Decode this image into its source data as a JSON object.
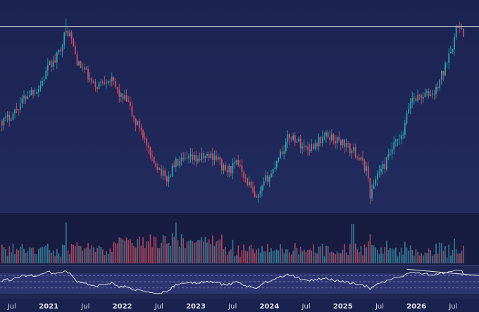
{
  "chart_data": {
    "type": "candlestick",
    "price_panel": {
      "price_min": 0,
      "price_max": 100,
      "horizontal_level": 93,
      "colors": {
        "up": "#2aa8b0",
        "down": "#e04a5f",
        "level_line": "#c5c9d6",
        "background": "#1c2452"
      },
      "waypoints": [
        [
          0,
          44
        ],
        [
          0.08,
          60
        ],
        [
          0.12,
          74
        ],
        [
          0.155,
          90
        ],
        [
          0.185,
          72
        ],
        [
          0.22,
          62
        ],
        [
          0.25,
          66
        ],
        [
          0.29,
          55
        ],
        [
          0.32,
          42
        ],
        [
          0.36,
          22
        ],
        [
          0.39,
          14
        ],
        [
          0.41,
          22
        ],
        [
          0.45,
          24
        ],
        [
          0.5,
          26
        ],
        [
          0.53,
          18
        ],
        [
          0.56,
          22
        ],
        [
          0.58,
          12
        ],
        [
          0.6,
          3
        ],
        [
          0.63,
          15
        ],
        [
          0.66,
          28
        ],
        [
          0.68,
          36
        ],
        [
          0.72,
          30
        ],
        [
          0.77,
          36
        ],
        [
          0.8,
          33
        ],
        [
          0.83,
          28
        ],
        [
          0.86,
          20
        ],
        [
          0.87,
          6
        ],
        [
          0.89,
          18
        ],
        [
          0.94,
          34
        ],
        [
          0.97,
          56
        ],
        [
          1.02,
          58
        ],
        [
          1.04,
          68
        ],
        [
          1.06,
          82
        ],
        [
          1.08,
          94
        ],
        [
          1.1,
          80
        ]
      ],
      "start_offset": 0.06,
      "x_span": 1.09
    },
    "volume_panel": {
      "colors": {
        "up": "#3b7f9a",
        "down": "#b24860",
        "background": "#171c40"
      }
    },
    "oscillator_panel": {
      "guide_levels": [
        70,
        50,
        30
      ],
      "colors": {
        "line": "#e9ecf4",
        "band": "#313c7a",
        "guide": "#8e95b8",
        "trendline": "#e9ecf4",
        "background": "#1f2752"
      }
    },
    "x_axis": {
      "ticks": [
        {
          "label": "Jul",
          "year": false
        },
        {
          "label": "2021",
          "year": true
        },
        {
          "label": "Jul",
          "year": false
        },
        {
          "label": "2022",
          "year": true
        },
        {
          "label": "Jul",
          "year": false
        },
        {
          "label": "2023",
          "year": true
        },
        {
          "label": "Jul",
          "year": false
        },
        {
          "label": "2024",
          "year": true
        },
        {
          "label": "Jul",
          "year": false
        },
        {
          "label": "2025",
          "year": true
        },
        {
          "label": "Jul",
          "year": false
        },
        {
          "label": "2026",
          "year": true
        },
        {
          "label": "Jul",
          "year": false
        }
      ]
    }
  }
}
